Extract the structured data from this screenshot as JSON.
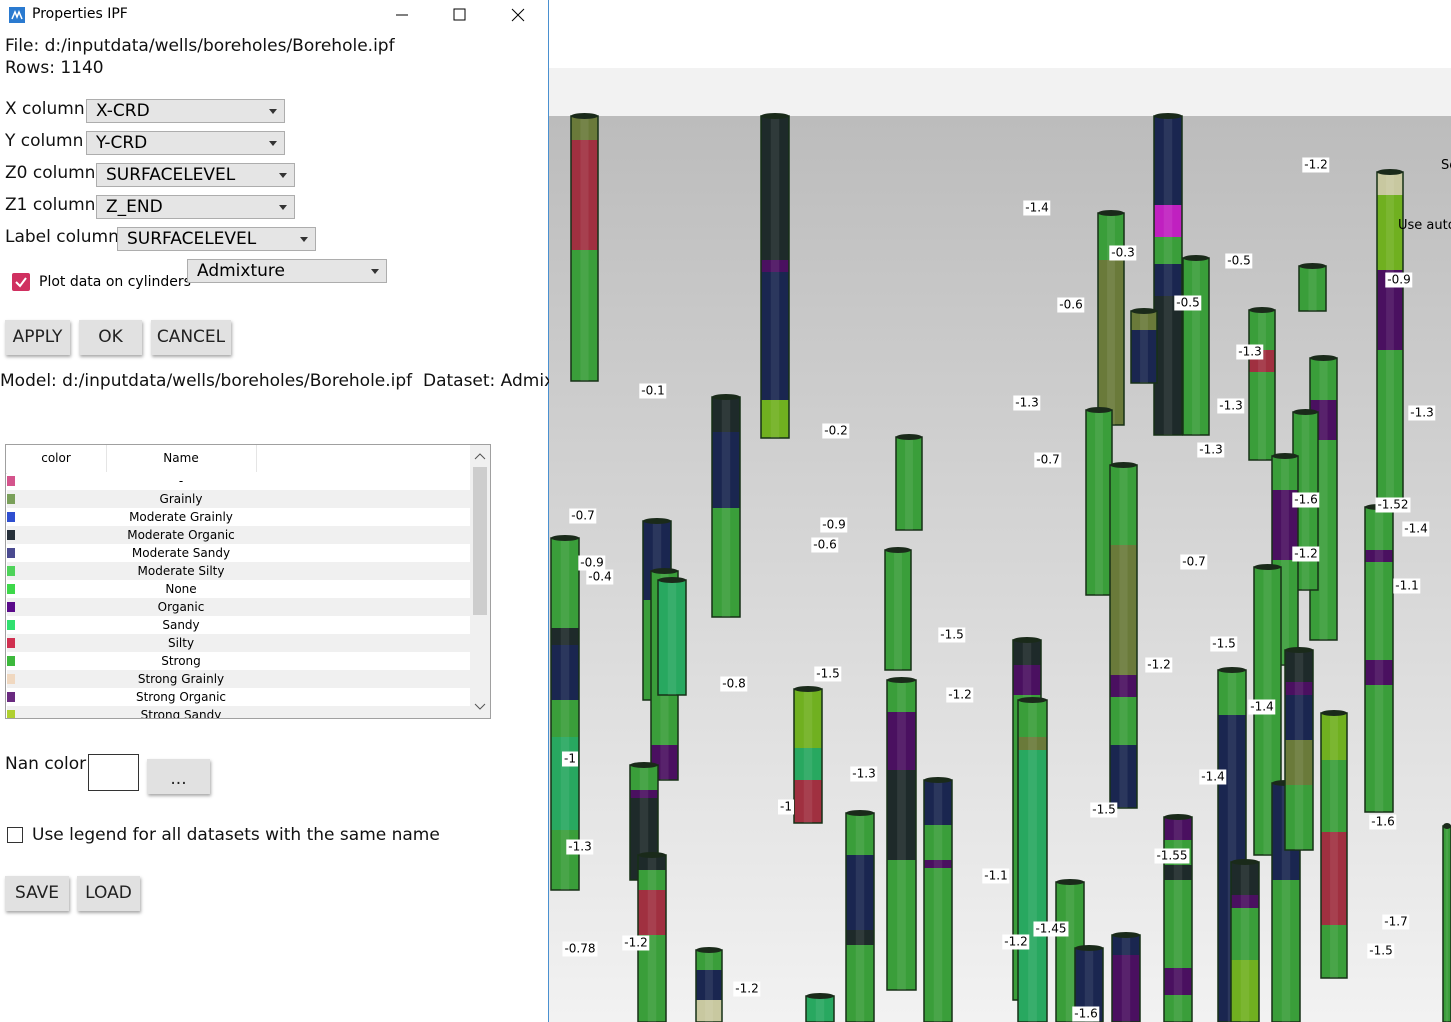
{
  "window": {
    "title": "Properties IPF"
  },
  "file": "File: d:/inputdata/wells/boreholes/Borehole.ipf",
  "rows": "Rows: 1140",
  "columns": [
    {
      "label": "X column",
      "value": "X-CRD"
    },
    {
      "label": "Y column",
      "value": "Y-CRD"
    },
    {
      "label": "Z0 column",
      "value": "SURFACELEVEL"
    },
    {
      "label": "Z1 column",
      "value": "Z_END"
    },
    {
      "label": "Label column",
      "value": "SURFACELEVEL"
    }
  ],
  "plot_checkbox": {
    "label": "Plot data on cylinders",
    "checked": true
  },
  "dataset_select": "Admixture",
  "buttons": [
    "APPLY",
    "OK",
    "CANCEL"
  ],
  "model_line": "Model: d:/inputdata/wells/boreholes/Borehole.ipf  Dataset: Admixture",
  "legend": {
    "headers": [
      "color",
      "Name"
    ],
    "rows": [
      {
        "color": "#d4548c",
        "name": "-"
      },
      {
        "color": "#7aa05a",
        "name": "Grainly"
      },
      {
        "color": "#2f4fd0",
        "name": "Moderate Grainly"
      },
      {
        "color": "#26303a",
        "name": "Moderate Organic"
      },
      {
        "color": "#4a4a90",
        "name": "Moderate Sandy"
      },
      {
        "color": "#4ed35a",
        "name": "Moderate Silty"
      },
      {
        "color": "#3dd84a",
        "name": "None"
      },
      {
        "color": "#5a0a8a",
        "name": "Organic"
      },
      {
        "color": "#30e070",
        "name": "Sandy"
      },
      {
        "color": "#d03050",
        "name": "Silty"
      },
      {
        "color": "#3cb83c",
        "name": "Strong"
      },
      {
        "color": "#f0d8c0",
        "name": "Strong Grainly"
      },
      {
        "color": "#6a2a80",
        "name": "Strong Organic"
      },
      {
        "color": "#b0d030",
        "name": "Strong Sandy"
      }
    ]
  },
  "nan_color": {
    "label": "Nan color",
    "button": "..."
  },
  "same_name_checkbox": {
    "label": "Use legend for all datasets with the same name",
    "checked": false
  },
  "file_buttons": [
    "SAVE",
    "LOAD"
  ],
  "view": {
    "labels": [
      "-1.2",
      "-1.4",
      "-0.3",
      "-0.5",
      "-0.9",
      "-0.6",
      "-0.5",
      "-1.3",
      "-0.1",
      "-1.3",
      "-1.3",
      "-1.3",
      "-0.2",
      "-1.3",
      "-0.7",
      "-1.6",
      "-1.52",
      "-0.7",
      "-0.9",
      "-1.4",
      "-0.6",
      "-1.2",
      "-0.9",
      "-0.4",
      "-0.7",
      "-1.1",
      "-1.5",
      "-1.5",
      "-1.2",
      "-1.5",
      "-0.8",
      "-1.2",
      "-1.4",
      "-1",
      "-1.3",
      "-1.4",
      "-1",
      "-1.5",
      "-1.6",
      "-1.3",
      "-1.55",
      "-1.1",
      "-1.45",
      "-1.2",
      "-1.2",
      "-0.78",
      "-1.7",
      "-1.5",
      "-1.2",
      "-1.6"
    ],
    "clipped_texts": [
      "Se",
      "Use auto"
    ]
  }
}
